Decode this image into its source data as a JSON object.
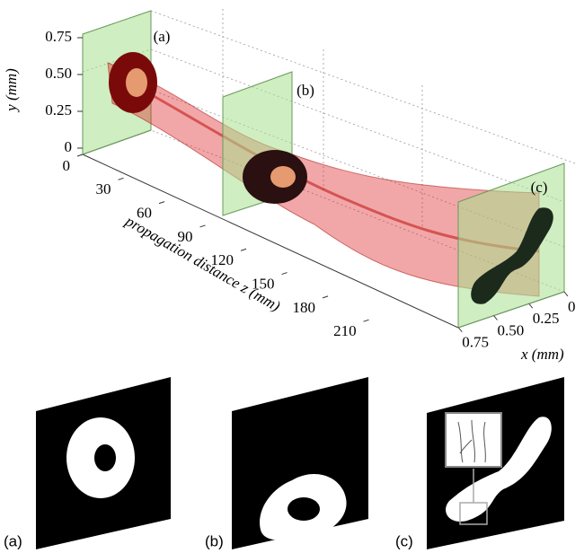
{
  "figure": {
    "panel_labels_3d": [
      "(a)",
      "(b)",
      "(c)"
    ],
    "y_axis": {
      "label": "y (mm)",
      "ticks": [
        0,
        0.25,
        {
          "value": 0.5,
          "label": "0.50"
        },
        0.75
      ]
    },
    "z_axis": {
      "label": "propagation distance z (mm)",
      "ticks": [
        0,
        30,
        60,
        90,
        120,
        150,
        180,
        210
      ]
    },
    "x_axis": {
      "label": "x (mm)",
      "ticks": [
        0,
        0.25,
        {
          "value": 0.5,
          "label": "0.50"
        },
        0.75
      ]
    },
    "bottom_labels": [
      "(a)",
      "(b)",
      "(c)"
    ]
  }
}
